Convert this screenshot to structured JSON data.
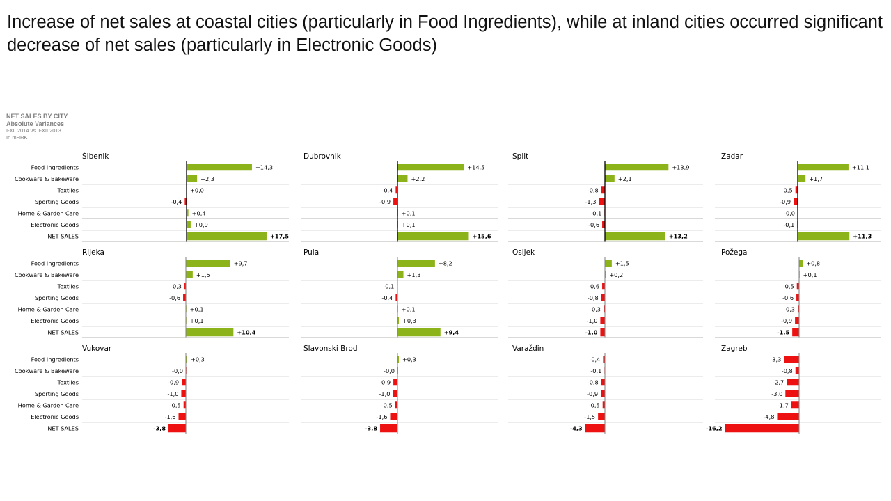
{
  "headline": "Increase of net sales at coastal cities (particularly in Food Ingredients), while at inland cities occurred significant decrease of net sales (particularly in Electronic Goods)",
  "report": {
    "title": "NET SALES BY CITY",
    "subtitle": "Absolute Variances",
    "period": "I-XII 2014 vs. I-XII 2013",
    "unit": "In mHRK"
  },
  "colors": {
    "positive": "#8db31a",
    "negative": "#ee1111",
    "axis": "#000000",
    "gridline": "#d9d9d9"
  },
  "chart_data": {
    "type": "bar",
    "orientation": "horizontal",
    "grid": true,
    "categories": [
      "Food Ingredients",
      "Cookware & Bakeware",
      "Textiles",
      "Sporting Goods",
      "Home & Garden Care",
      "Electronic Goods",
      "NET SALES"
    ],
    "series": [
      {
        "name": "Šibenik",
        "values": [
          14.3,
          2.3,
          0.0,
          -0.4,
          0.4,
          0.9,
          17.5
        ],
        "labels": [
          "+14,3",
          "+2,3",
          "+0,0",
          "-0,4",
          "+0,4",
          "+0,9",
          "+17,5"
        ]
      },
      {
        "name": "Dubrovnik",
        "values": [
          14.5,
          2.2,
          -0.4,
          -0.9,
          0.1,
          0.1,
          15.6
        ],
        "labels": [
          "+14,5",
          "+2,2",
          "-0,4",
          "-0,9",
          "+0,1",
          "+0,1",
          "+15,6"
        ]
      },
      {
        "name": "Split",
        "values": [
          13.9,
          2.1,
          -0.8,
          -1.3,
          -0.1,
          -0.6,
          13.2
        ],
        "labels": [
          "+13,9",
          "+2,1",
          "-0,8",
          "-1,3",
          "-0,1",
          "-0,6",
          "+13,2"
        ]
      },
      {
        "name": "Zadar",
        "values": [
          11.1,
          1.7,
          -0.5,
          -0.9,
          -0.0,
          -0.1,
          11.3
        ],
        "labels": [
          "+11,1",
          "+1,7",
          "-0,5",
          "-0,9",
          "-0,0",
          "-0,1",
          "+11,3"
        ]
      },
      {
        "name": "Rijeka",
        "values": [
          9.7,
          1.5,
          -0.3,
          -0.6,
          0.1,
          0.1,
          10.4
        ],
        "labels": [
          "+9,7",
          "+1,5",
          "-0,3",
          "-0,6",
          "+0,1",
          "+0,1",
          "+10,4"
        ]
      },
      {
        "name": "Pula",
        "values": [
          8.2,
          1.3,
          -0.1,
          -0.4,
          0.1,
          0.3,
          9.4
        ],
        "labels": [
          "+8,2",
          "+1,3",
          "-0,1",
          "-0,4",
          "+0,1",
          "+0,3",
          "+9,4"
        ]
      },
      {
        "name": "Osijek",
        "values": [
          1.5,
          0.2,
          -0.6,
          -0.8,
          -0.3,
          -1.0,
          -1.0
        ],
        "labels": [
          "+1,5",
          "+0,2",
          "-0,6",
          "-0,8",
          "-0,3",
          "-1,0",
          "-1,0"
        ]
      },
      {
        "name": "Požega",
        "values": [
          0.8,
          0.1,
          -0.5,
          -0.6,
          -0.3,
          -0.9,
          -1.5
        ],
        "labels": [
          "+0,8",
          "+0,1",
          "-0,5",
          "-0,6",
          "-0,3",
          "-0,9",
          "-1,5"
        ]
      },
      {
        "name": "Vukovar",
        "values": [
          0.3,
          -0.0,
          -0.9,
          -1.0,
          -0.5,
          -1.6,
          -3.8
        ],
        "labels": [
          "+0,3",
          "-0,0",
          "-0,9",
          "-1,0",
          "-0,5",
          "-1,6",
          "-3,8"
        ]
      },
      {
        "name": "Slavonski Brod",
        "values": [
          0.3,
          -0.0,
          -0.9,
          -1.0,
          -0.5,
          -1.6,
          -3.8
        ],
        "labels": [
          "+0,3",
          "-0,0",
          "-0,9",
          "-1,0",
          "-0,5",
          "-1,6",
          "-3,8"
        ]
      },
      {
        "name": "Varaždin",
        "values": [
          -0.4,
          -0.1,
          -0.8,
          -0.9,
          -0.5,
          -1.5,
          -4.3
        ],
        "labels": [
          "-0,4",
          "-0,1",
          "-0,8",
          "-0,9",
          "-0,5",
          "-1,5",
          "-4,3"
        ]
      },
      {
        "name": "Zagreb",
        "values": [
          -3.3,
          -0.8,
          -2.7,
          -3.0,
          -1.7,
          -4.8,
          -16.2
        ],
        "labels": [
          "-3,3",
          "-0,8",
          "-2,7",
          "-3,0",
          "-1,7",
          "-4,8",
          "-16,2"
        ]
      }
    ]
  }
}
